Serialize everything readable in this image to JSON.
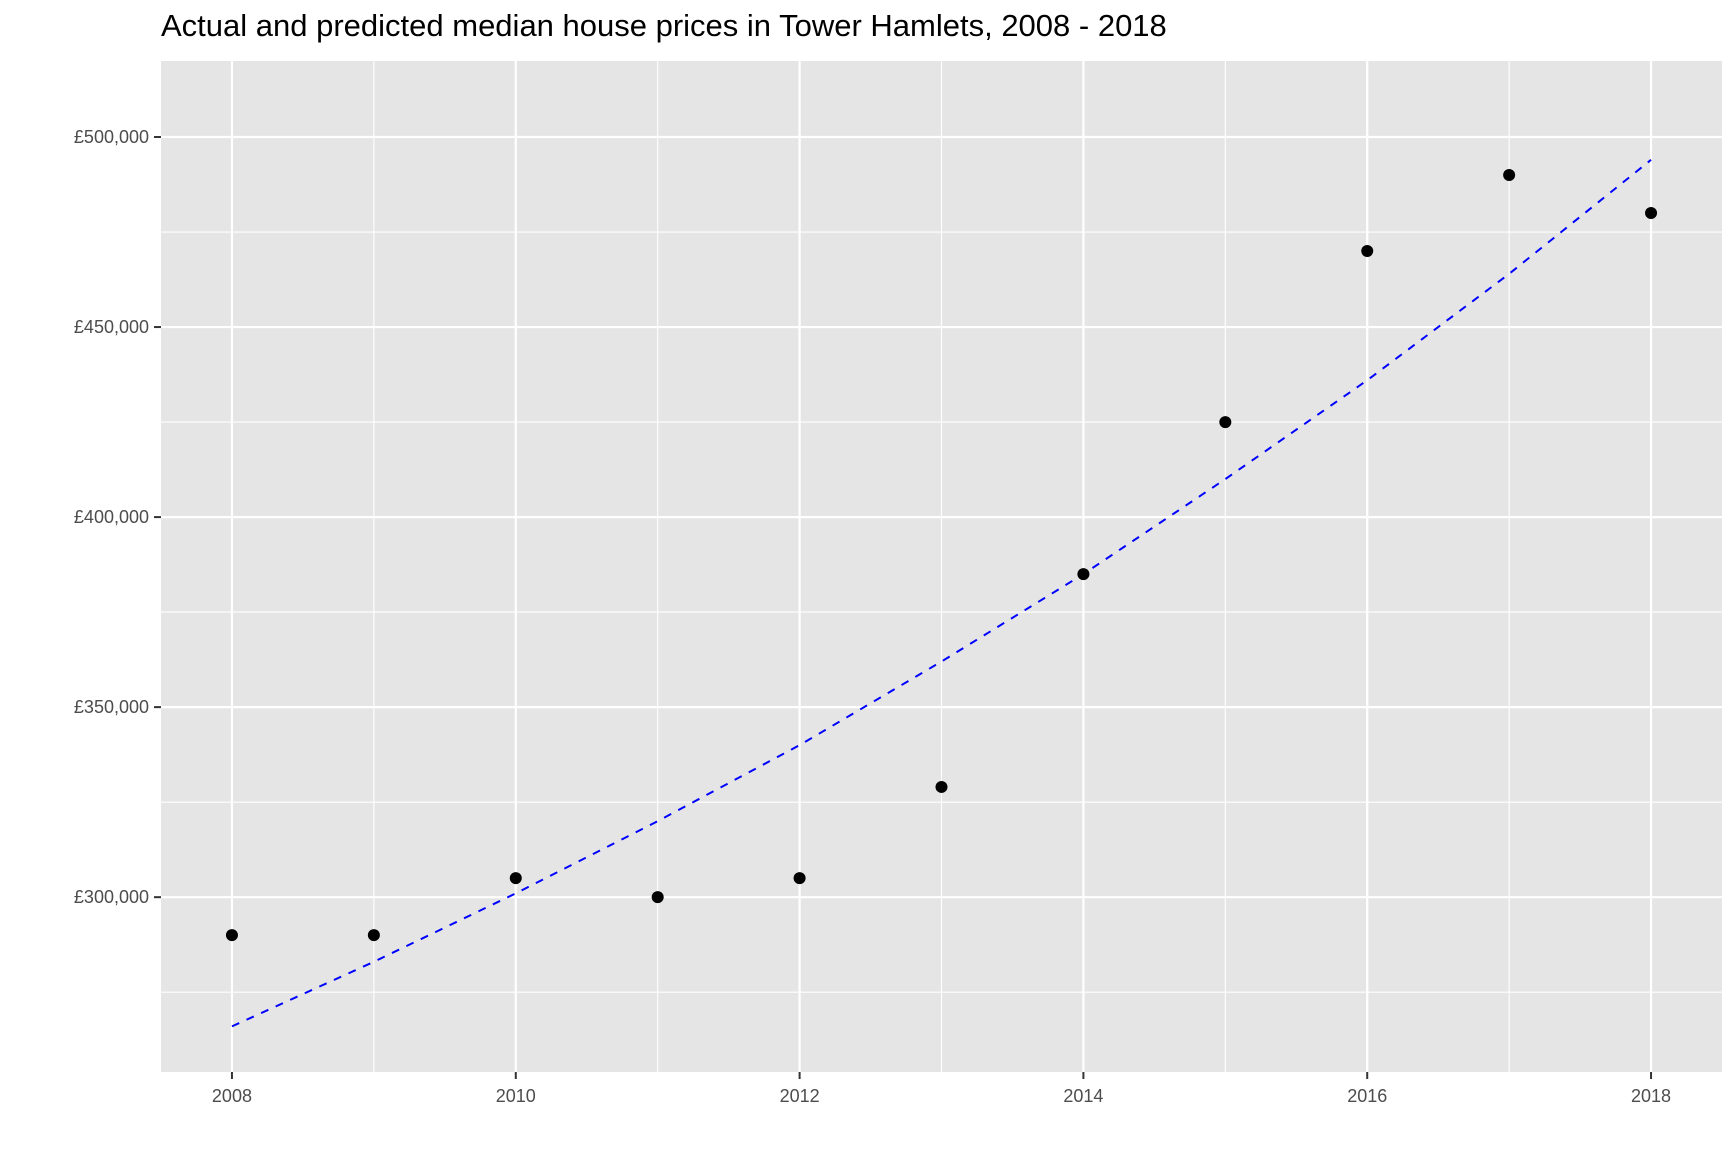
{
  "chart_data": {
    "type": "scatter",
    "title": "Actual and predicted median house prices in Tower Hamlets, 2008 - 2018",
    "xlabel": "",
    "ylabel": "",
    "xlim": [
      2007.5,
      2018.5
    ],
    "ylim": [
      254000,
      520000
    ],
    "x_ticks": [
      2008,
      2010,
      2012,
      2014,
      2016,
      2018
    ],
    "x_tick_labels": [
      "2008",
      "2010",
      "2012",
      "2014",
      "2016",
      "2018"
    ],
    "y_ticks": [
      300000,
      350000,
      400000,
      450000,
      500000
    ],
    "y_tick_labels": [
      "£300,000",
      "£350,000",
      "£400,000",
      "£450,000",
      "£500,000"
    ],
    "grid": true,
    "series": [
      {
        "kind": "points",
        "color": "#000000",
        "x": [
          2008,
          2009,
          2010,
          2011,
          2012,
          2013,
          2014,
          2015,
          2016,
          2017,
          2018
        ],
        "y": [
          290000,
          290000,
          305000,
          300000,
          305000,
          329000,
          385000,
          425000,
          470000,
          490000,
          480000
        ]
      },
      {
        "kind": "dashed-line",
        "color": "#0000ff",
        "x": [
          2008,
          2009,
          2010,
          2011,
          2012,
          2013,
          2014,
          2015,
          2016,
          2017,
          2018
        ],
        "y": [
          266000,
          283000,
          301000,
          320000,
          340000,
          362000,
          385000,
          410000,
          436000,
          464000,
          494000
        ]
      }
    ]
  }
}
